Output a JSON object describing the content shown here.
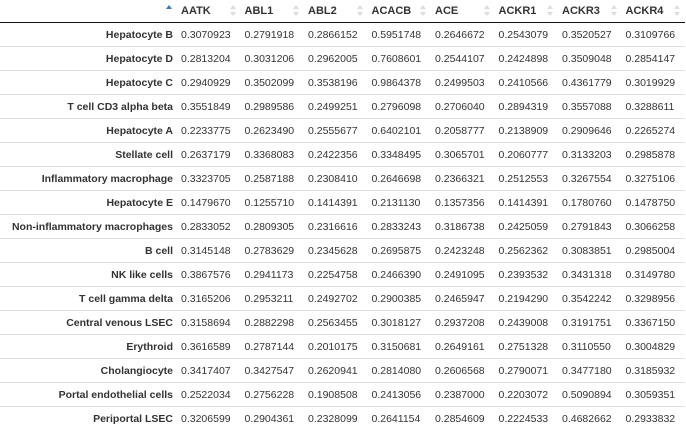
{
  "table": {
    "columns": [
      "AATK",
      "ABL1",
      "ABL2",
      "ACACB",
      "ACE",
      "ACKR1",
      "ACKR3",
      "ACKR4"
    ],
    "sorted_column_index": -1,
    "rows": [
      {
        "name": "Hepatocyte B",
        "values": [
          "0.3070923",
          "0.2791918",
          "0.2866152",
          "0.5951748",
          "0.2646672",
          "0.2543079",
          "0.3520527",
          "0.3109766"
        ]
      },
      {
        "name": "Hepatocyte D",
        "values": [
          "0.2813204",
          "0.3031206",
          "0.2962005",
          "0.7608601",
          "0.2544107",
          "0.2424898",
          "0.3509048",
          "0.2854147"
        ]
      },
      {
        "name": "Hepatocyte C",
        "values": [
          "0.2940929",
          "0.3502099",
          "0.3538196",
          "0.9864378",
          "0.2499503",
          "0.2410566",
          "0.4361779",
          "0.3019929"
        ]
      },
      {
        "name": "T cell CD3 alpha beta",
        "values": [
          "0.3551849",
          "0.2989586",
          "0.2499251",
          "0.2796098",
          "0.2706040",
          "0.2894319",
          "0.3557088",
          "0.3288611"
        ]
      },
      {
        "name": "Hepatocyte A",
        "values": [
          "0.2233775",
          "0.2623490",
          "0.2555677",
          "0.6402101",
          "0.2058777",
          "0.2138909",
          "0.2909646",
          "0.2265274"
        ]
      },
      {
        "name": "Stellate cell",
        "values": [
          "0.2637179",
          "0.3368083",
          "0.2422356",
          "0.3348495",
          "0.3065701",
          "0.2060777",
          "0.3133203",
          "0.2985878"
        ]
      },
      {
        "name": "Inflammatory macrophage",
        "values": [
          "0.3323705",
          "0.2587188",
          "0.2308410",
          "0.2646698",
          "0.2366321",
          "0.2512553",
          "0.3267554",
          "0.3275106"
        ]
      },
      {
        "name": "Hepatocyte E",
        "values": [
          "0.1479670",
          "0.1255710",
          "0.1414391",
          "0.2131130",
          "0.1357356",
          "0.1414391",
          "0.1780760",
          "0.1478750"
        ]
      },
      {
        "name": "Non-inflammatory macrophages",
        "values": [
          "0.2833052",
          "0.2809305",
          "0.2316616",
          "0.2833243",
          "0.3186738",
          "0.2425059",
          "0.2791843",
          "0.3066258"
        ]
      },
      {
        "name": "B cell",
        "values": [
          "0.3145148",
          "0.2783629",
          "0.2345628",
          "0.2695875",
          "0.2423248",
          "0.2562362",
          "0.3083851",
          "0.2985004"
        ]
      },
      {
        "name": "NK like cells",
        "values": [
          "0.3867576",
          "0.2941173",
          "0.2254758",
          "0.2466390",
          "0.2491095",
          "0.2393532",
          "0.3431318",
          "0.3149780"
        ]
      },
      {
        "name": "T cell gamma delta",
        "values": [
          "0.3165206",
          "0.2953211",
          "0.2492702",
          "0.2900385",
          "0.2465947",
          "0.2194290",
          "0.3542242",
          "0.3298956"
        ]
      },
      {
        "name": "Central venous LSEC",
        "values": [
          "0.3158694",
          "0.2882298",
          "0.2563455",
          "0.3018127",
          "0.2937208",
          "0.2439008",
          "0.3191751",
          "0.3367150"
        ]
      },
      {
        "name": "Erythroid",
        "values": [
          "0.3616589",
          "0.2787144",
          "0.2010175",
          "0.3150681",
          "0.2649161",
          "0.2751328",
          "0.3110550",
          "0.3004829"
        ]
      },
      {
        "name": "Cholangiocyte",
        "values": [
          "0.3417407",
          "0.3427547",
          "0.2620941",
          "0.2814080",
          "0.2606568",
          "0.2790071",
          "0.3477180",
          "0.3185932"
        ]
      },
      {
        "name": "Portal endothelial cells",
        "values": [
          "0.2522034",
          "0.2756228",
          "0.1908508",
          "0.2413056",
          "0.2387000",
          "0.2203072",
          "0.5090894",
          "0.3059351"
        ]
      },
      {
        "name": "Periportal LSEC",
        "values": [
          "0.3206599",
          "0.2904361",
          "0.2328099",
          "0.2641154",
          "0.2854609",
          "0.2224533",
          "0.4682662",
          "0.2933832"
        ]
      }
    ]
  }
}
